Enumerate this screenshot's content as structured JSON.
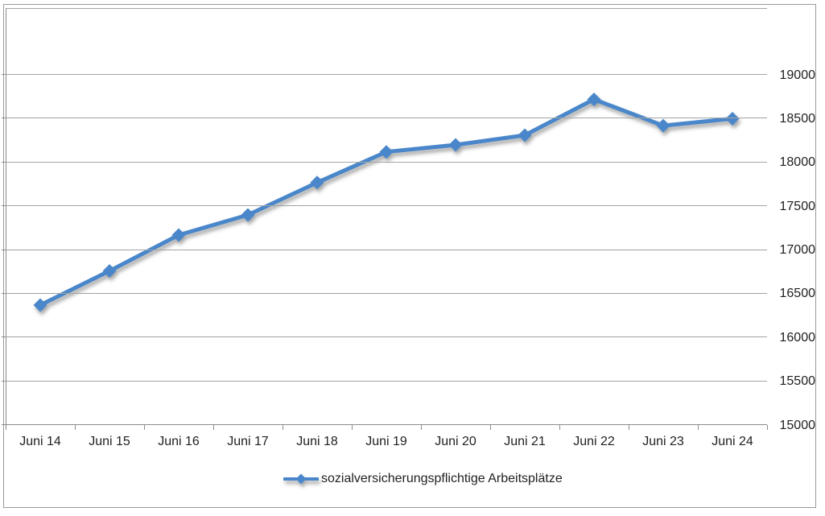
{
  "chart_data": {
    "type": "line",
    "title": "",
    "xlabel": "",
    "ylabel": "",
    "categories": [
      "Juni 14",
      "Juni 15",
      "Juni 16",
      "Juni 17",
      "Juni 18",
      "Juni 19",
      "Juni 20",
      "Juni 21",
      "Juni 22",
      "Juni 23",
      "Juni 24"
    ],
    "series": [
      {
        "name": "sozialversicherungspflichtige Arbeitsplätze",
        "values": [
          16370,
          16760,
          17170,
          17400,
          17770,
          18120,
          18200,
          18310,
          18720,
          18420,
          18500
        ]
      }
    ],
    "ylim": [
      15000,
      19000
    ],
    "ytick_step": 500,
    "ytick_labels": [
      "15000",
      "15500",
      "16000",
      "16500",
      "17000",
      "17500",
      "18000",
      "18500",
      "19000"
    ],
    "grid": true,
    "y_axis_side": "right",
    "legend_position": "bottom",
    "marker": "diamond",
    "colors": {
      "series": "#4a87ca",
      "gridline": "#a3a3a3",
      "axis": "#8c8c8c",
      "border": "#9a9a9a",
      "text": "#1f1f1f",
      "background": "#ffffff"
    }
  },
  "legend": {
    "label": "sozialversicherungspflichtige Arbeitsplätze"
  }
}
